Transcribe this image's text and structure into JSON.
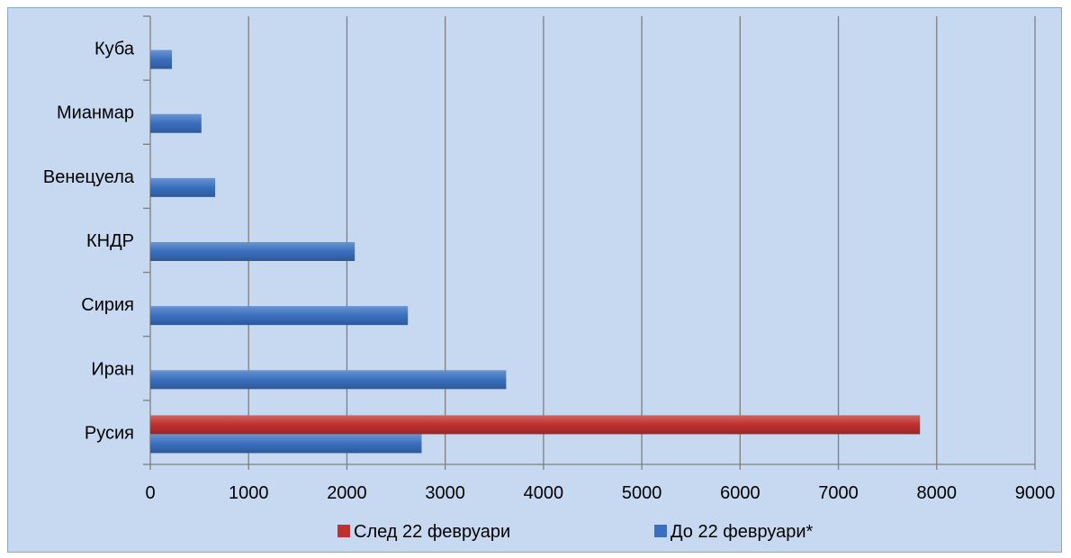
{
  "chart_data": {
    "type": "bar",
    "orientation": "horizontal",
    "categories": [
      "Русия",
      "Иран",
      "Сирия",
      "КНДР",
      "Венецуела",
      "Мианмар",
      "Куба"
    ],
    "series": [
      {
        "name": "След 22 февруари",
        "color": "#c0302e",
        "values": [
          7830,
          0,
          0,
          0,
          0,
          0,
          0
        ]
      },
      {
        "name": "До 22 февруари*",
        "color": "#3a6fbf",
        "values": [
          2760,
          3620,
          2620,
          2080,
          660,
          520,
          220
        ]
      }
    ],
    "xlim": [
      0,
      9000
    ],
    "xticks": [
      "0",
      "1000",
      "2000",
      "3000",
      "4000",
      "5000",
      "6000",
      "7000",
      "8000",
      "9000"
    ],
    "grid": "vertical",
    "legend_position": "bottom"
  }
}
